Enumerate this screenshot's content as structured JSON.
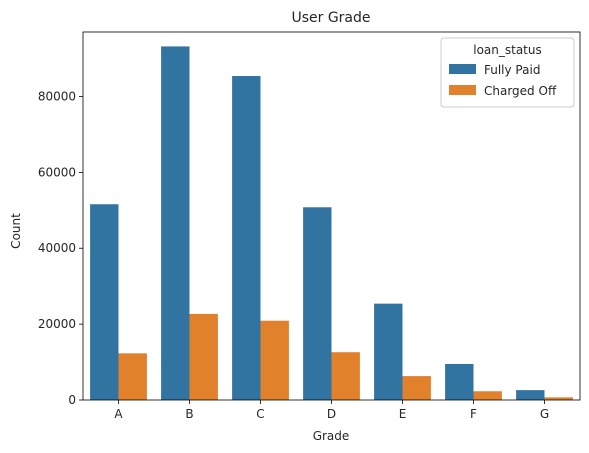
{
  "chart_data": {
    "type": "bar",
    "title": "User Grade",
    "xlabel": "Grade",
    "ylabel": "Count",
    "categories": [
      "A",
      "B",
      "C",
      "D",
      "E",
      "F",
      "G"
    ],
    "series": [
      {
        "name": "Fully Paid",
        "color": "#3274a1",
        "values": [
          51600,
          93200,
          85400,
          50800,
          25400,
          9500,
          2600
        ]
      },
      {
        "name": "Charged Off",
        "color": "#e1812c",
        "values": [
          12300,
          22700,
          20900,
          12600,
          6300,
          2300,
          700
        ]
      }
    ],
    "ylim": [
      0,
      97000
    ],
    "yticks": [
      0,
      20000,
      40000,
      60000,
      80000
    ],
    "ytick_labels": [
      "0",
      "20000",
      "40000",
      "60000",
      "80000"
    ],
    "legend": {
      "title": "loan_status",
      "placement": "top-right"
    },
    "grid": false
  }
}
